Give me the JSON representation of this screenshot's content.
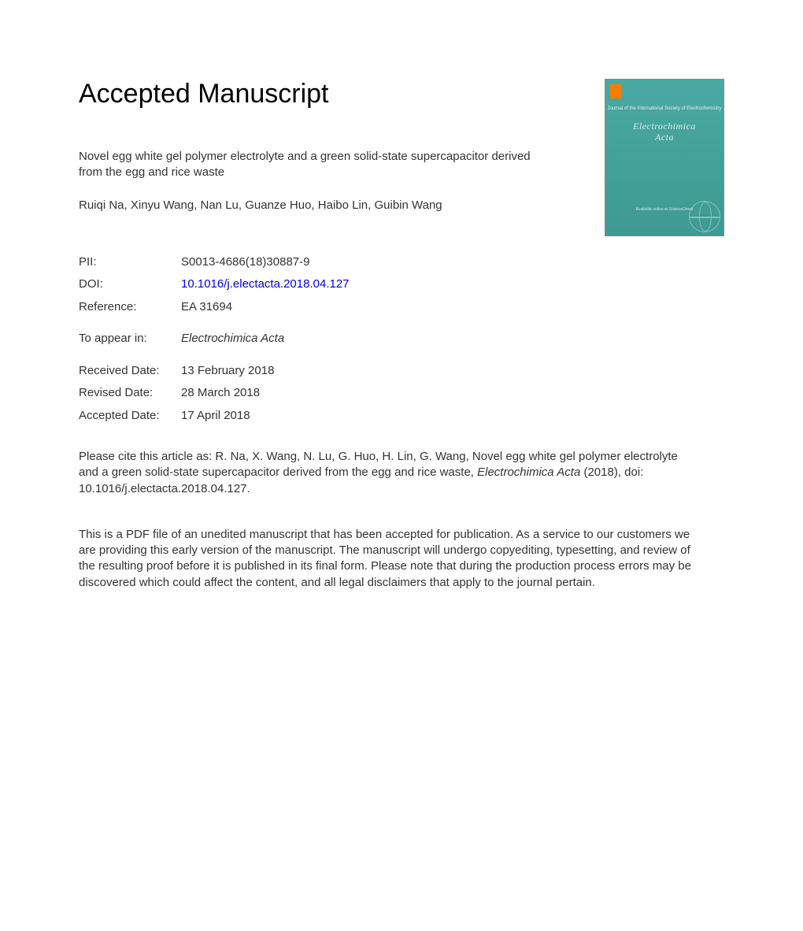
{
  "heading": "Accepted Manuscript",
  "article_title": "Novel egg white gel polymer electrolyte and a green solid-state supercapacitor derived from the egg and rice waste",
  "authors": "Ruiqi Na, Xinyu Wang, Nan Lu, Guanze Huo, Haibo Lin, Guibin Wang",
  "cover": {
    "subtitle": "Journal of the International Society of Electrochemistry",
    "journal_line1": "Electrochimica",
    "journal_line2": "Acta",
    "footer_text": "Available online at ScienceDirect"
  },
  "meta": {
    "pii_label": "PII:",
    "pii_value": "S0013-4686(18)30887-9",
    "doi_label": "DOI:",
    "doi_value": "10.1016/j.electacta.2018.04.127",
    "ref_label": "Reference:",
    "ref_value": "EA 31694",
    "appear_label": "To appear in:",
    "appear_value": "Electrochimica Acta",
    "received_label": "Received Date:",
    "received_value": "13 February 2018",
    "revised_label": "Revised Date:",
    "revised_value": "28 March 2018",
    "accepted_label": "Accepted Date:",
    "accepted_value": "17 April 2018"
  },
  "citation": {
    "prefix": "Please cite this article as: R. Na, X. Wang, N. Lu, G. Huo, H. Lin, G. Wang, Novel egg white gel polymer electrolyte and a green solid-state supercapacitor derived from the egg and rice waste, ",
    "journal": "Electrochimica Acta",
    "suffix": " (2018), doi: 10.1016/j.electacta.2018.04.127."
  },
  "disclaimer": "This is a PDF file of an unedited manuscript that has been accepted for publication. As a service to our customers we are providing this early version of the manuscript. The manuscript will undergo copyediting, typesetting, and review of the resulting proof before it is published in its final form. Please note that during the production process errors may be discovered which could affect the content, and all legal disclaimers that apply to the journal pertain.",
  "colors": {
    "link": "#0000ee",
    "text": "#333333",
    "cover_bg": "#4aa9a2"
  }
}
